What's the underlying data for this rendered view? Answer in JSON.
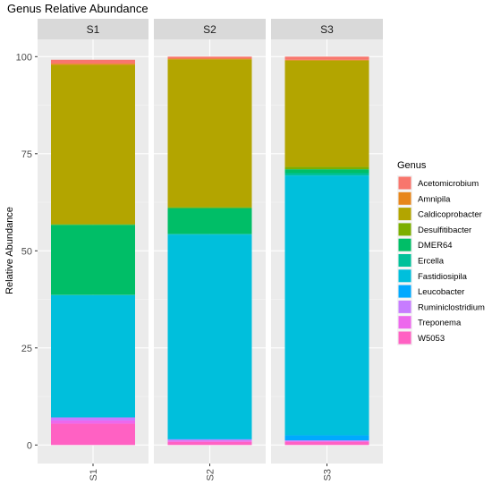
{
  "chart_data": {
    "type": "bar",
    "stacked": true,
    "title": "Genus Relative Abundance",
    "xlabel": "",
    "ylabel": "Relative Abundance",
    "ylim": [
      0,
      100
    ],
    "yticks": [
      "0",
      "25",
      "50",
      "75",
      "100"
    ],
    "facets": [
      "S1",
      "S2",
      "S3"
    ],
    "categories": [
      "S1",
      "S2",
      "S3"
    ],
    "legend_title": "Genus",
    "legend_position": "right",
    "background": "#ebebeb",
    "grid": true,
    "series": [
      {
        "name": "W5053",
        "color": "#FF61C3",
        "values": [
          5.5,
          0.8,
          0.8
        ]
      },
      {
        "name": "Treponema",
        "color": "#ED68ED",
        "values": [
          0.8,
          0.4,
          0.2
        ]
      },
      {
        "name": "Ruminiclostridium",
        "color": "#C77CFF",
        "values": [
          0.8,
          0.2,
          0.2
        ]
      },
      {
        "name": "Leucobacter",
        "color": "#00A9FF",
        "values": [
          0.0,
          0.2,
          1.3
        ]
      },
      {
        "name": "Fastidiosipila",
        "color": "#00BFDC",
        "values": [
          31.5,
          52.6,
          66.9
        ]
      },
      {
        "name": "Ercella",
        "color": "#00C19A",
        "values": [
          0.1,
          0.2,
          0.6
        ]
      },
      {
        "name": "DMER64",
        "color": "#00BE67",
        "values": [
          18.0,
          6.6,
          1.0
        ]
      },
      {
        "name": "Desulfitibacter",
        "color": "#7CAE00",
        "values": [
          0.2,
          0.3,
          0.6
        ]
      },
      {
        "name": "Caldicoprobacter",
        "color": "#B3A500",
        "values": [
          41.0,
          38.0,
          27.4
        ]
      },
      {
        "name": "Amnipila",
        "color": "#E7861B",
        "values": [
          0.3,
          0.2,
          0.2
        ]
      },
      {
        "name": "Acetomicrobium",
        "color": "#F8766D",
        "values": [
          1.0,
          0.5,
          0.8
        ]
      }
    ],
    "legend_order": [
      "Acetomicrobium",
      "Amnipila",
      "Caldicoprobacter",
      "Desulfitibacter",
      "DMER64",
      "Ercella",
      "Fastidiosipila",
      "Leucobacter",
      "Ruminiclostridium",
      "Treponema",
      "W5053"
    ]
  }
}
